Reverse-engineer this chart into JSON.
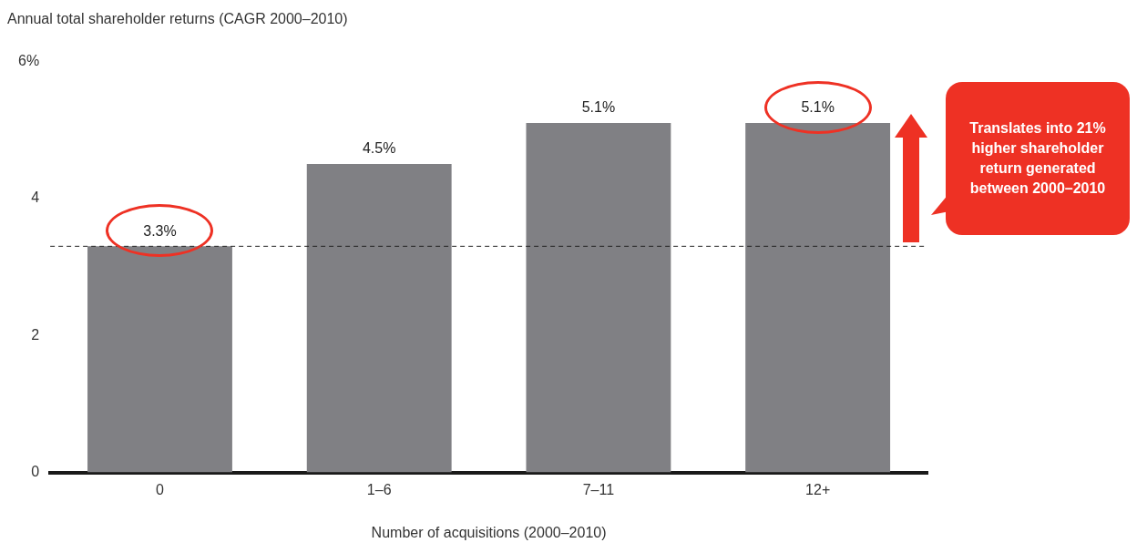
{
  "chart_data": {
    "type": "bar",
    "title": "Annual total shareholder returns (CAGR 2000–2010)",
    "xlabel": "Number of acquisitions (2000–2010)",
    "categories": [
      "0",
      "1–6",
      "7–11",
      "12+"
    ],
    "values": [
      3.3,
      4.5,
      5.1,
      5.1
    ],
    "color": "#808084",
    "value_labels": [
      "3.3%",
      "4.5%",
      "5.1%",
      "5.1%"
    ],
    "ylim": [
      0,
      6
    ],
    "yticks": [
      0,
      2,
      4,
      {
        "value": 6,
        "label": "6%"
      }
    ],
    "grid": false,
    "legend": false,
    "ref_lines": [
      {
        "axis": "y",
        "value": 3.3,
        "color": "#222222",
        "line_style": "dashed"
      }
    ],
    "annotations": [
      "Translates into 21% higher shareholder return generated between 2000–2010"
    ]
  }
}
